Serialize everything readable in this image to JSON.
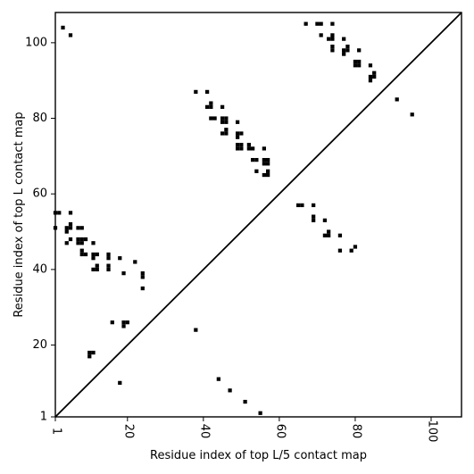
{
  "chart_data": {
    "type": "scatter",
    "xlabel": "Residue index of top L/5 contact map",
    "ylabel": "Residue index of top L contact map",
    "xlim": [
      1,
      108
    ],
    "ylim": [
      1,
      108
    ],
    "x_ticks": [
      1,
      20,
      40,
      60,
      80,
      100
    ],
    "y_ticks": [
      1,
      20,
      40,
      60,
      80,
      100
    ],
    "diagonal": true,
    "marker": "square",
    "marker_color": "#000000",
    "series": [
      {
        "points": [
          [
            10,
            18
          ],
          [
            11,
            18
          ],
          [
            10,
            17
          ],
          [
            18,
            10
          ],
          [
            16,
            26
          ],
          [
            19,
            25
          ],
          [
            19,
            26
          ],
          [
            20,
            26
          ],
          [
            38,
            24
          ],
          [
            44,
            11
          ],
          [
            47,
            8
          ],
          [
            51,
            5
          ],
          [
            55,
            2
          ],
          [
            1,
            55
          ],
          [
            2,
            55
          ],
          [
            5,
            55
          ],
          [
            1,
            51
          ],
          [
            4,
            51
          ],
          [
            5,
            52
          ],
          [
            5,
            51
          ],
          [
            4,
            50
          ],
          [
            7,
            51
          ],
          [
            8,
            51
          ],
          [
            7,
            48
          ],
          [
            8,
            48
          ],
          [
            9,
            48
          ],
          [
            4,
            47
          ],
          [
            7,
            47
          ],
          [
            8,
            47
          ],
          [
            5,
            48
          ],
          [
            11,
            47
          ],
          [
            8,
            45
          ],
          [
            8,
            44
          ],
          [
            9,
            44
          ],
          [
            11,
            44
          ],
          [
            12,
            44
          ],
          [
            11,
            43
          ],
          [
            15,
            44
          ],
          [
            15,
            43
          ],
          [
            18,
            43
          ],
          [
            22,
            42
          ],
          [
            11,
            40
          ],
          [
            12,
            40
          ],
          [
            12,
            41
          ],
          [
            15,
            41
          ],
          [
            15,
            40
          ],
          [
            19,
            39
          ],
          [
            24,
            39
          ],
          [
            24,
            38
          ],
          [
            24,
            35
          ],
          [
            3,
            104
          ],
          [
            5,
            102
          ],
          [
            38,
            87
          ],
          [
            41,
            87
          ],
          [
            41,
            83
          ],
          [
            42,
            84
          ],
          [
            42,
            83
          ],
          [
            45,
            83
          ],
          [
            42,
            80
          ],
          [
            43,
            80
          ],
          [
            45,
            80
          ],
          [
            46,
            80
          ],
          [
            45,
            79
          ],
          [
            46,
            79
          ],
          [
            49,
            79
          ],
          [
            45,
            76
          ],
          [
            46,
            76
          ],
          [
            46,
            77
          ],
          [
            49,
            76
          ],
          [
            50,
            76
          ],
          [
            49,
            75
          ],
          [
            49,
            73
          ],
          [
            50,
            73
          ],
          [
            49,
            72
          ],
          [
            50,
            72
          ],
          [
            52,
            73
          ],
          [
            52,
            72
          ],
          [
            53,
            72
          ],
          [
            56,
            72
          ],
          [
            53,
            69
          ],
          [
            54,
            69
          ],
          [
            56,
            69
          ],
          [
            57,
            69
          ],
          [
            56,
            68
          ],
          [
            57,
            68
          ],
          [
            54,
            66
          ],
          [
            57,
            66
          ],
          [
            56,
            65
          ],
          [
            57,
            65
          ],
          [
            65,
            57
          ],
          [
            66,
            57
          ],
          [
            69,
            57
          ],
          [
            69,
            54
          ],
          [
            69,
            53
          ],
          [
            72,
            53
          ],
          [
            73,
            50
          ],
          [
            72,
            49
          ],
          [
            73,
            49
          ],
          [
            76,
            49
          ],
          [
            80,
            46
          ],
          [
            76,
            45
          ],
          [
            79,
            45
          ],
          [
            67,
            105
          ],
          [
            70,
            105
          ],
          [
            71,
            105
          ],
          [
            74,
            105
          ],
          [
            71,
            102
          ],
          [
            73,
            101
          ],
          [
            74,
            101
          ],
          [
            74,
            102
          ],
          [
            77,
            101
          ],
          [
            74,
            99
          ],
          [
            74,
            98
          ],
          [
            78,
            99
          ],
          [
            78,
            98
          ],
          [
            77,
            98
          ],
          [
            77,
            97
          ],
          [
            81,
            98
          ],
          [
            80,
            95
          ],
          [
            81,
            95
          ],
          [
            80,
            94
          ],
          [
            81,
            94
          ],
          [
            84,
            94
          ],
          [
            85,
            92
          ],
          [
            84,
            91
          ],
          [
            85,
            91
          ],
          [
            84,
            90
          ],
          [
            91,
            85
          ],
          [
            95,
            81
          ]
        ]
      }
    ]
  }
}
